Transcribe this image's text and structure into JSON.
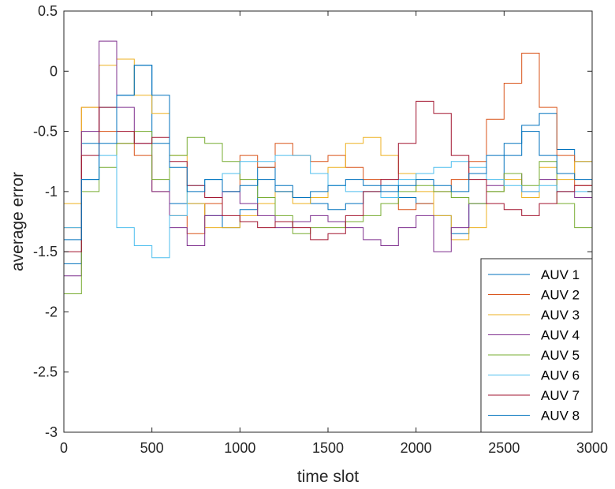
{
  "chart_data": {
    "type": "line",
    "title": "",
    "xlabel": "time slot",
    "ylabel": "average error",
    "xlim": [
      0,
      3000
    ],
    "ylim": [
      -3,
      0.5
    ],
    "xticks": [
      0,
      500,
      1000,
      1500,
      2000,
      2500,
      3000
    ],
    "yticks": [
      -3,
      -2.5,
      -2,
      -1.5,
      -1,
      -0.5,
      0,
      0.5
    ],
    "xtick_labels": [
      "0",
      "500",
      "1000",
      "1500",
      "2000",
      "2500",
      "3000"
    ],
    "ytick_labels": [
      "-3",
      "-2.5",
      "-2",
      "-1.5",
      "-1",
      "-0.5",
      "0",
      "0.5"
    ],
    "grid": false,
    "legend_position": "bottom-right",
    "step_style": true,
    "series": [
      {
        "name": "AUV 1",
        "color": "#0072BD",
        "x": [
          0,
          100,
          200,
          300,
          400,
          500,
          600,
          700,
          800,
          900,
          1000,
          1100,
          1200,
          1300,
          1400,
          1500,
          1600,
          1700,
          1800,
          1900,
          2000,
          2100,
          2200,
          2300,
          2400,
          2500,
          2600,
          2700,
          2800,
          2900,
          3000
        ],
        "y": [
          -1.6,
          -0.6,
          -0.3,
          -0.2,
          0.05,
          -0.6,
          -1.1,
          -1.1,
          -1.2,
          -1.3,
          -1.15,
          -0.8,
          -0.95,
          -1.05,
          -1.1,
          -1.15,
          -1.1,
          -1.0,
          -0.95,
          -1.05,
          -1.1,
          -1.2,
          -1.35,
          -1.1,
          -1.0,
          -0.7,
          -0.45,
          -0.35,
          -0.65,
          -0.75,
          -0.45
        ]
      },
      {
        "name": "AUV 2",
        "color": "#D95319",
        "x": [
          0,
          100,
          200,
          300,
          400,
          500,
          600,
          700,
          800,
          900,
          1000,
          1100,
          1200,
          1300,
          1400,
          1500,
          1600,
          1700,
          1800,
          1900,
          2000,
          2100,
          2200,
          2300,
          2400,
          2500,
          2600,
          2700,
          2800,
          2900,
          3000
        ],
        "y": [
          -1.3,
          -0.3,
          -0.5,
          -0.6,
          -0.7,
          -1.0,
          -1.2,
          -1.35,
          -1.1,
          -1.0,
          -0.7,
          -0.8,
          -0.6,
          -0.7,
          -0.75,
          -0.7,
          -0.8,
          -0.9,
          -1.05,
          -1.15,
          -1.1,
          -1.0,
          -0.9,
          -0.75,
          -0.4,
          -0.1,
          0.15,
          -0.3,
          -0.7,
          -0.95,
          -1.0
        ]
      },
      {
        "name": "AUV 3",
        "color": "#EDB120",
        "x": [
          0,
          100,
          200,
          300,
          400,
          500,
          600,
          700,
          800,
          900,
          1000,
          1100,
          1200,
          1300,
          1400,
          1500,
          1600,
          1700,
          1800,
          1900,
          2000,
          2100,
          2200,
          2300,
          2400,
          2500,
          2600,
          2700,
          2800,
          2900,
          3000
        ],
        "y": [
          -1.1,
          -0.3,
          0.05,
          0.1,
          -0.2,
          -0.35,
          -0.7,
          -1.1,
          -1.3,
          -1.3,
          -1.2,
          -1.1,
          -1.0,
          -1.1,
          -1.05,
          -0.8,
          -0.6,
          -0.55,
          -0.7,
          -0.85,
          -1.0,
          -1.2,
          -1.4,
          -1.3,
          -1.0,
          -0.9,
          -1.05,
          -0.8,
          -0.9,
          -0.75,
          -0.7
        ]
      },
      {
        "name": "AUV 4",
        "color": "#7E2F8E",
        "x": [
          0,
          100,
          200,
          300,
          400,
          500,
          600,
          700,
          800,
          900,
          1000,
          1100,
          1200,
          1300,
          1400,
          1500,
          1600,
          1700,
          1800,
          1900,
          2000,
          2100,
          2200,
          2300,
          2400,
          2500,
          2600,
          2700,
          2800,
          2900,
          3000
        ],
        "y": [
          -1.7,
          -0.5,
          0.25,
          -0.3,
          -0.6,
          -1.0,
          -1.3,
          -1.45,
          -1.2,
          -1.0,
          -1.1,
          -1.2,
          -1.3,
          -1.25,
          -1.2,
          -1.25,
          -1.3,
          -1.4,
          -1.45,
          -1.3,
          -1.2,
          -1.5,
          -1.3,
          -1.1,
          -0.95,
          -0.85,
          -1.0,
          -0.9,
          -1.0,
          -1.05,
          -0.95
        ]
      },
      {
        "name": "AUV 5",
        "color": "#77AC30",
        "x": [
          0,
          100,
          200,
          300,
          400,
          500,
          600,
          700,
          800,
          900,
          1000,
          1100,
          1200,
          1300,
          1400,
          1500,
          1600,
          1700,
          1800,
          1900,
          2000,
          2100,
          2200,
          2300,
          2400,
          2500,
          2600,
          2700,
          2800,
          2900,
          3000
        ],
        "y": [
          -1.85,
          -1.0,
          -0.8,
          -0.6,
          -0.5,
          -0.9,
          -0.7,
          -0.55,
          -0.6,
          -0.75,
          -0.9,
          -1.05,
          -1.2,
          -1.35,
          -1.3,
          -1.3,
          -1.25,
          -1.2,
          -1.1,
          -1.0,
          -0.95,
          -1.0,
          -1.05,
          -1.1,
          -1.0,
          -0.85,
          -0.95,
          -0.75,
          -1.1,
          -1.3,
          -1.2
        ]
      },
      {
        "name": "AUV 6",
        "color": "#4DBEEE",
        "x": [
          0,
          100,
          200,
          300,
          400,
          500,
          600,
          700,
          800,
          900,
          1000,
          1100,
          1200,
          1300,
          1400,
          1500,
          1600,
          1700,
          1800,
          1900,
          2000,
          2100,
          2200,
          2300,
          2400,
          2500,
          2600,
          2700,
          2800,
          2900,
          3000
        ],
        "y": [
          -1.3,
          -0.9,
          -0.7,
          -1.3,
          -1.45,
          -1.55,
          -1.2,
          -0.95,
          -0.9,
          -0.85,
          -0.75,
          -0.75,
          -0.7,
          -0.7,
          -0.85,
          -0.95,
          -1.0,
          -1.0,
          -1.05,
          -0.9,
          -0.85,
          -0.8,
          -0.75,
          -0.8,
          -0.9,
          -0.95,
          -1.0,
          -0.95,
          -1.0,
          -1.0,
          -1.0
        ]
      },
      {
        "name": "AUV 7",
        "color": "#A2142F",
        "x": [
          0,
          100,
          200,
          300,
          400,
          500,
          600,
          700,
          800,
          900,
          1000,
          1100,
          1200,
          1300,
          1400,
          1500,
          1600,
          1700,
          1800,
          1900,
          2000,
          2100,
          2200,
          2300,
          2400,
          2500,
          2600,
          2700,
          2800,
          2900,
          3000
        ],
        "y": [
          -1.5,
          -0.7,
          -0.3,
          -0.5,
          -0.6,
          -0.55,
          -0.75,
          -0.95,
          -1.05,
          -1.2,
          -1.25,
          -1.3,
          -1.25,
          -1.3,
          -1.4,
          -1.35,
          -1.2,
          -1.0,
          -0.9,
          -0.6,
          -0.25,
          -0.35,
          -0.7,
          -0.9,
          -1.1,
          -1.15,
          -1.2,
          -1.1,
          -1.0,
          -0.95,
          -0.95
        ]
      },
      {
        "name": "AUV 8",
        "color": "#0072BD",
        "x": [
          0,
          100,
          200,
          300,
          400,
          500,
          600,
          700,
          800,
          900,
          1000,
          1100,
          1200,
          1300,
          1400,
          1500,
          1600,
          1700,
          1800,
          1900,
          2000,
          2100,
          2200,
          2300,
          2400,
          2500,
          2600,
          2700,
          2800,
          2900,
          3000
        ],
        "y": [
          -1.4,
          -0.9,
          -0.6,
          -0.2,
          0.05,
          -0.2,
          -0.8,
          -1.0,
          -0.9,
          -1.0,
          -0.95,
          -0.9,
          -1.0,
          -1.05,
          -1.0,
          -0.95,
          -0.9,
          -0.95,
          -1.0,
          -0.95,
          -0.9,
          -0.95,
          -1.0,
          -0.85,
          -0.7,
          -0.6,
          -0.5,
          -0.7,
          -0.85,
          -0.9,
          -0.9
        ]
      }
    ]
  }
}
